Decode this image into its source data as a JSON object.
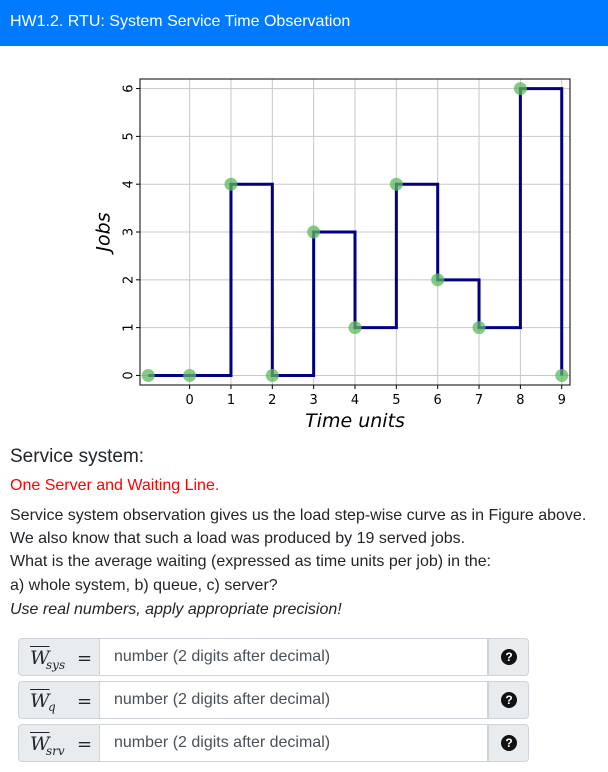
{
  "header": {
    "title": "HW1.2. RTU: System Service Time Observation"
  },
  "question": {
    "heading": "Service system:",
    "subheading": "One Server and Waiting Line.",
    "lines": [
      "Service system observation gives us the load step-wise curve as in Figure above.",
      "We also know that such a load was produced by 19 served jobs.",
      "What is the average waiting (expressed as time units per job) in the:",
      "a) whole system, b) queue, c) server?"
    ],
    "instruction": "Use real numbers, apply appropriate precision!"
  },
  "answers": [
    {
      "symbol": "W",
      "subscript": "sys",
      "equals": "=",
      "placeholder": "number (2 digits after decimal)",
      "help": "?"
    },
    {
      "symbol": "W",
      "subscript": "q",
      "equals": "=",
      "placeholder": "number (2 digits after decimal)",
      "help": "?"
    },
    {
      "symbol": "W",
      "subscript": "srv",
      "equals": "=",
      "placeholder": "number (2 digits after decimal)",
      "help": "?"
    }
  ],
  "colors": {
    "header": "#007bff",
    "step_line": "#000080",
    "points": "#5cb85c",
    "subheading": "#ff0000"
  },
  "chart_data": {
    "type": "line",
    "step": true,
    "xlabel": "Time units",
    "ylabel": "Jobs",
    "x_ticks": [
      0,
      1,
      2,
      3,
      4,
      5,
      6,
      7,
      8,
      9
    ],
    "y_ticks": [
      0,
      1,
      2,
      3,
      4,
      5,
      6
    ],
    "xlim": [
      -1.2,
      9.2
    ],
    "ylim": [
      -0.2,
      6.2
    ],
    "grid": true,
    "points": [
      {
        "x": -1,
        "y": 0
      },
      {
        "x": 0,
        "y": 0
      },
      {
        "x": 1,
        "y": 4
      },
      {
        "x": 2,
        "y": 0
      },
      {
        "x": 3,
        "y": 3
      },
      {
        "x": 4,
        "y": 1
      },
      {
        "x": 5,
        "y": 4
      },
      {
        "x": 6,
        "y": 2
      },
      {
        "x": 7,
        "y": 1
      },
      {
        "x": 8,
        "y": 6
      },
      {
        "x": 9,
        "y": 0
      }
    ]
  }
}
